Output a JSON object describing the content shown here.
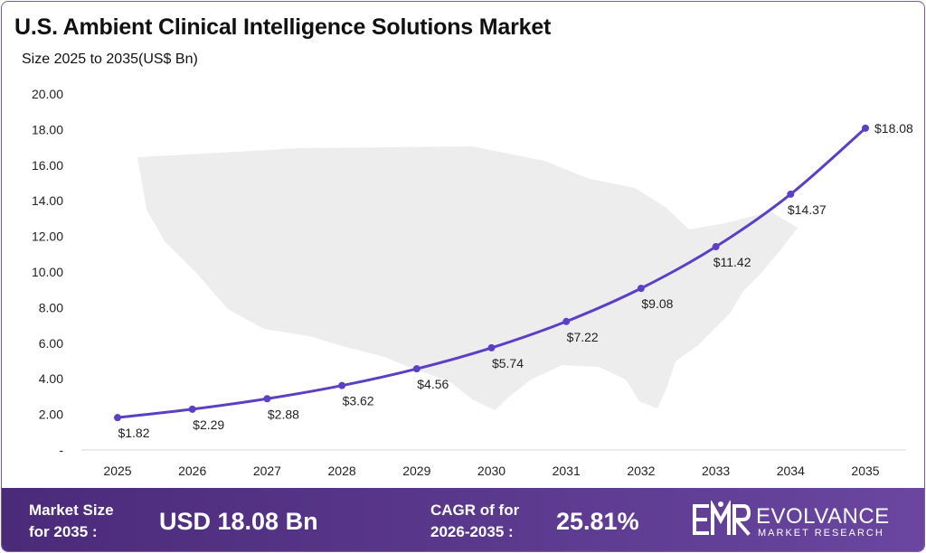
{
  "title": "U.S. Ambient Clinical Intelligence Solutions Market",
  "subtitle": "Size 2025 to 2035(US$ Bn)",
  "colors": {
    "line": "#5b3fc4",
    "footer": "#4b2a7a",
    "map": "#ececec"
  },
  "chart_data": {
    "type": "line",
    "categories": [
      "2025",
      "2026",
      "2027",
      "2028",
      "2029",
      "2030",
      "2031",
      "2032",
      "2033",
      "2034",
      "2035"
    ],
    "values": [
      1.82,
      2.29,
      2.88,
      3.62,
      4.56,
      5.74,
      7.22,
      9.08,
      11.42,
      14.37,
      18.08
    ],
    "data_labels": [
      "$1.82",
      "$2.29",
      "$2.88",
      "$3.62",
      "$4.56",
      "$5.74",
      "$7.22",
      "$9.08",
      "$11.42",
      "$14.37",
      "$18.08"
    ],
    "y_ticks": [
      "-",
      "2.00",
      "4.00",
      "6.00",
      "8.00",
      "10.00",
      "12.00",
      "14.00",
      "16.00",
      "18.00",
      "20.00"
    ],
    "ylim": [
      0,
      20
    ],
    "grid": false,
    "legend": "none"
  },
  "footer": {
    "market_size_label_1": "Market Size",
    "market_size_label_2": "for 2035 :",
    "market_size_value": "USD 18.08 Bn",
    "cagr_label_1": "CAGR of for",
    "cagr_label_2": "2026-2035 :",
    "cagr_value": "25.81%",
    "logo_name": "EVOLVANCE",
    "logo_sub": "MARKET RESEARCH"
  }
}
